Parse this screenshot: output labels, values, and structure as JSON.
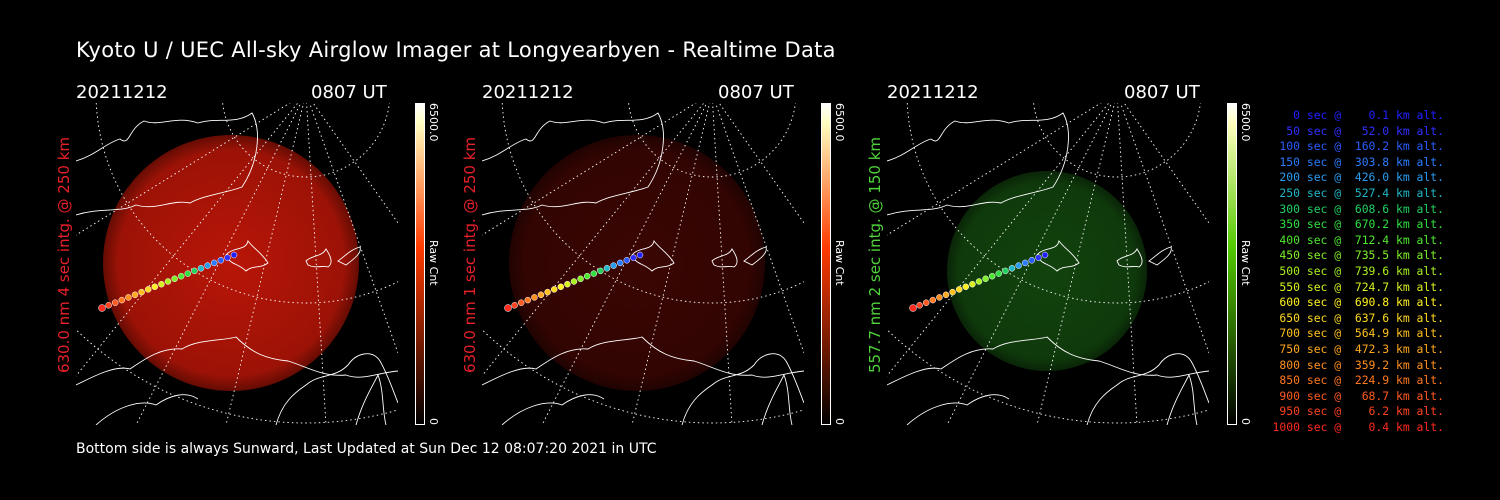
{
  "title": "Kyoto U / UEC All-sky Airglow Imager at Longyearbyen - Realtime Data",
  "panels": [
    {
      "date": "20211212",
      "time": "0807 UT",
      "ylabel": "630.0 nm 4 sec intg. @ 250 km",
      "label_color": "#e8202a",
      "glow": "#ff1e0a",
      "glow_opacity": 0.72,
      "cbar_color": "#ff3a00",
      "cbar_max": "6500.0",
      "cbar_min": "0",
      "cbar_label": "Raw Cnt"
    },
    {
      "date": "20211212",
      "time": "0807 UT",
      "ylabel": "630.0 nm 1 sec intg. @ 250 km",
      "label_color": "#e8202a",
      "glow": "#d0140a",
      "glow_opacity": 0.28,
      "cbar_color": "#ff3a00",
      "cbar_max": "6500.0",
      "cbar_min": "0",
      "cbar_label": "Raw Cnt"
    },
    {
      "date": "20211212",
      "time": "0807 UT",
      "ylabel": "557.7 nm 2 sec intg. @ 150 km",
      "label_color": "#4fd33a",
      "glow": "#2aa020",
      "glow_opacity": 0.42,
      "cbar_color": "#52c800",
      "cbar_max": "6500.0",
      "cbar_min": "0",
      "cbar_label": "Raw Cnt"
    }
  ],
  "legend": [
    {
      "text": "   0 sec @    0.1 km alt.",
      "color": "#2020ff"
    },
    {
      "text": "  50 sec @   52.0 km alt.",
      "color": "#3030ff"
    },
    {
      "text": " 100 sec @  160.2 km alt.",
      "color": "#2a5cff"
    },
    {
      "text": " 150 sec @  303.8 km alt.",
      "color": "#2a7cff"
    },
    {
      "text": " 200 sec @  426.0 km alt.",
      "color": "#2a9cf0"
    },
    {
      "text": " 250 sec @  527.4 km alt.",
      "color": "#20b8c8"
    },
    {
      "text": " 300 sec @  608.6 km alt.",
      "color": "#22d060"
    },
    {
      "text": " 350 sec @  670.2 km alt.",
      "color": "#30e040"
    },
    {
      "text": " 400 sec @  712.4 km alt.",
      "color": "#4fe830"
    },
    {
      "text": " 450 sec @  735.5 km alt.",
      "color": "#7ef028"
    },
    {
      "text": " 500 sec @  739.6 km alt.",
      "color": "#a8f020"
    },
    {
      "text": " 550 sec @  724.7 km alt.",
      "color": "#d8f020"
    },
    {
      "text": " 600 sec @  690.8 km alt.",
      "color": "#fff020"
    },
    {
      "text": " 650 sec @  637.6 km alt.",
      "color": "#ffd820"
    },
    {
      "text": " 700 sec @  564.9 km alt.",
      "color": "#ffc020"
    },
    {
      "text": " 750 sec @  472.3 km alt.",
      "color": "#ffa820"
    },
    {
      "text": " 800 sec @  359.2 km alt.",
      "color": "#ff9020"
    },
    {
      "text": " 850 sec @  224.9 km alt.",
      "color": "#ff7820"
    },
    {
      "text": " 900 sec @   68.7 km alt.",
      "color": "#ff5a20"
    },
    {
      "text": " 950 sec @    6.2 km alt.",
      "color": "#ff4220"
    },
    {
      "text": "1000 sec @    0.4 km alt.",
      "color": "#ff2a20"
    }
  ],
  "footer": "Bottom side is always Sunward, Last Updated at Sun Dec 12 08:07:20 2021 in UTC"
}
